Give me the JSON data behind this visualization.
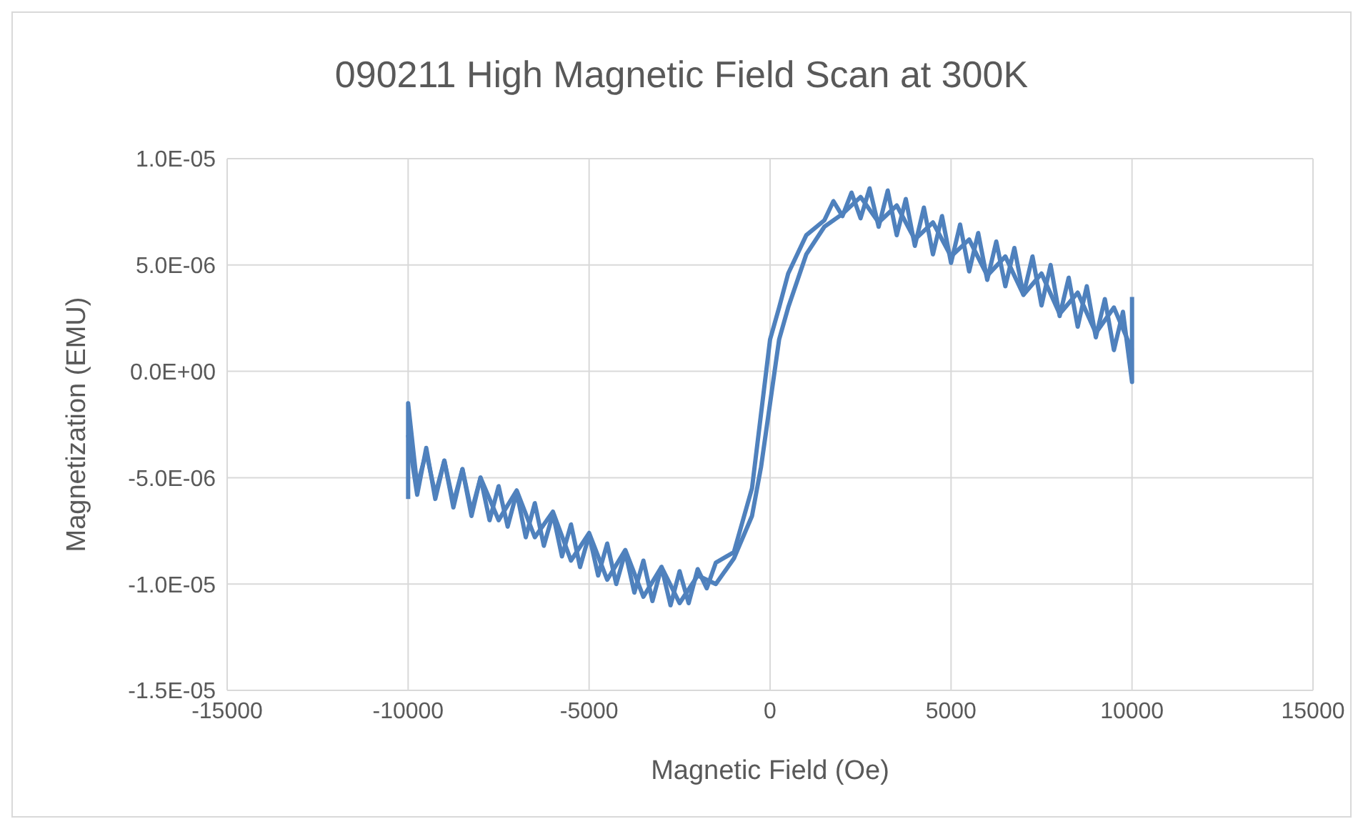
{
  "chart_data": {
    "type": "line",
    "title": "090211 High Magnetic Field Scan at 300K",
    "xlabel": "Magnetic Field (Oe)",
    "ylabel": "Magnetization (EMU)",
    "xlim": [
      -15000,
      15000
    ],
    "xticks": [
      -15000,
      -10000,
      -5000,
      0,
      5000,
      10000,
      15000
    ],
    "ylim": [
      -1.5e-05,
      1e-05
    ],
    "yticks": [
      {
        "value": -1.5e-05,
        "label": "-1.5E-05"
      },
      {
        "value": -1e-05,
        "label": "-1.0E-05"
      },
      {
        "value": -5e-06,
        "label": "-5.0E-06"
      },
      {
        "value": 0,
        "label": "0.0E+00"
      },
      {
        "value": 5e-06,
        "label": "5.0E-06"
      },
      {
        "value": 1e-05,
        "label": "1.0E-05"
      }
    ],
    "grid": true,
    "marker": "none",
    "line_style": "solid",
    "series": [
      {
        "color": "#4f81bd",
        "x": [
          10000,
          10000,
          9750,
          9500,
          9250,
          9000,
          8750,
          8500,
          8250,
          8000,
          7750,
          7500,
          7250,
          7000,
          6750,
          6500,
          6250,
          6000,
          5750,
          5500,
          5250,
          5000,
          4750,
          4500,
          4250,
          4000,
          3750,
          3500,
          3250,
          3000,
          2750,
          2500,
          2250,
          2000,
          1750,
          1500,
          1000,
          500,
          250,
          0,
          -250,
          -500,
          -1000,
          -1500,
          -1750,
          -2000,
          -2250,
          -2500,
          -2750,
          -3000,
          -3250,
          -3500,
          -3750,
          -4000,
          -4250,
          -4500,
          -4750,
          -5000,
          -5250,
          -5500,
          -5750,
          -6000,
          -6250,
          -6500,
          -6750,
          -7000,
          -7250,
          -7500,
          -7750,
          -8000,
          -8250,
          -8500,
          -8750,
          -9000,
          -9250,
          -9500,
          -9750,
          -10000,
          -10000
        ],
        "values": [
          3.5e-06,
          -5e-07,
          2.8e-06,
          1e-06,
          3.4e-06,
          1.6e-06,
          4e-06,
          2.1e-06,
          4.4e-06,
          2.6e-06,
          5e-06,
          3.1e-06,
          5.4e-06,
          3.6e-06,
          5.8e-06,
          4e-06,
          6.1e-06,
          4.3e-06,
          6.5e-06,
          4.7e-06,
          6.9e-06,
          5.1e-06,
          7.3e-06,
          5.5e-06,
          7.7e-06,
          5.9e-06,
          8.1e-06,
          6.4e-06,
          8.5e-06,
          6.8e-06,
          8.6e-06,
          7.2e-06,
          8.4e-06,
          7.3e-06,
          8e-06,
          7.1e-06,
          6.4e-06,
          4.6e-06,
          3e-06,
          1.5e-06,
          -2e-06,
          -5.5e-06,
          -8.5e-06,
          -9e-06,
          -1.02e-05,
          -9.3e-06,
          -1.09e-05,
          -9.4e-06,
          -1.1e-05,
          -9.2e-06,
          -1.08e-05,
          -8.9e-06,
          -1.04e-05,
          -8.5e-06,
          -1e-05,
          -8.1e-06,
          -9.6e-06,
          -7.7e-06,
          -9.2e-06,
          -7.2e-06,
          -8.7e-06,
          -6.7e-06,
          -8.2e-06,
          -6.2e-06,
          -7.8e-06,
          -5.7e-06,
          -7.3e-06,
          -5.4e-06,
          -7e-06,
          -5e-06,
          -6.6e-06,
          -4.6e-06,
          -6.2e-06,
          -4.2e-06,
          -5.8e-06,
          -3.8e-06,
          -5.4e-06,
          -1.5e-06,
          -6e-06
        ]
      },
      {
        "color": "#4f81bd",
        "x": [
          -10000,
          -9750,
          -9500,
          -9250,
          -9000,
          -8750,
          -8500,
          -8250,
          -8000,
          -7500,
          -7000,
          -6500,
          -6000,
          -5500,
          -5000,
          -4500,
          -4000,
          -3500,
          -3000,
          -2500,
          -2000,
          -1500,
          -1000,
          -500,
          -250,
          0,
          250,
          500,
          1000,
          1500,
          2000,
          2500,
          3000,
          3500,
          4000,
          4500,
          5000,
          5500,
          6000,
          6500,
          7000,
          7500,
          8000,
          8500,
          9000,
          9500,
          10000
        ],
        "values": [
          -3e-06,
          -5.8e-06,
          -3.6e-06,
          -6e-06,
          -4.2e-06,
          -6.4e-06,
          -4.6e-06,
          -6.8e-06,
          -5e-06,
          -7e-06,
          -5.6e-06,
          -7.8e-06,
          -6.6e-06,
          -8.9e-06,
          -7.6e-06,
          -9.8e-06,
          -8.4e-06,
          -1.06e-05,
          -9.2e-06,
          -1.09e-05,
          -9.6e-06,
          -1e-05,
          -8.8e-06,
          -6.8e-06,
          -4.5e-06,
          -1.5e-06,
          1.5e-06,
          3e-06,
          5.5e-06,
          6.8e-06,
          7.4e-06,
          8.2e-06,
          7e-06,
          7.8e-06,
          6.2e-06,
          7e-06,
          5.4e-06,
          6.2e-06,
          4.5e-06,
          5.4e-06,
          3.6e-06,
          4.6e-06,
          2.7e-06,
          3.7e-06,
          1.8e-06,
          3e-06,
          1e-06
        ]
      }
    ]
  }
}
